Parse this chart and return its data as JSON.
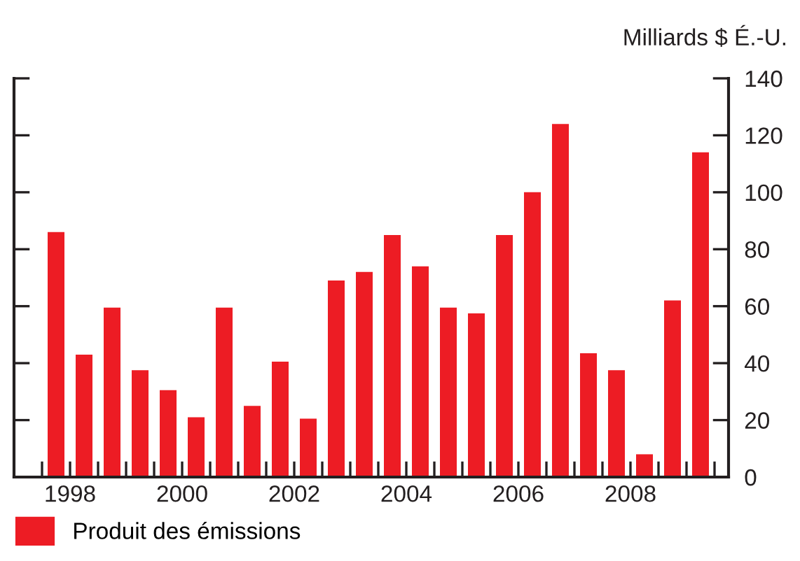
{
  "chart_data": {
    "type": "bar",
    "ylabel": "Milliards $ É.-U.",
    "x": [
      1998.25,
      1998.75,
      1999.25,
      1999.75,
      2000.25,
      2000.75,
      2001.25,
      2001.75,
      2002.25,
      2002.75,
      2003.25,
      2003.75,
      2004.25,
      2004.75,
      2005.25,
      2005.75,
      2006.25,
      2006.75,
      2007.25,
      2007.75,
      2008.25,
      2008.75,
      2009.25,
      2009.75
    ],
    "series": [
      {
        "name": "Produit des émissions",
        "color": "#ed1c24",
        "values": [
          86,
          43,
          59.5,
          37.5,
          30.5,
          21,
          59.5,
          25,
          40.5,
          20.5,
          69,
          72,
          85,
          74,
          59.5,
          57.5,
          85,
          100,
          124,
          43.5,
          37.5,
          8,
          62,
          114
        ]
      }
    ],
    "xlim": [
      1997.5,
      2010.25
    ],
    "xticks": [
      {
        "value": 1998,
        "label": null
      },
      {
        "value": 1998.5,
        "label": "1998"
      },
      {
        "value": 1999,
        "label": null
      },
      {
        "value": 1999.5,
        "label": null
      },
      {
        "value": 2000,
        "label": null
      },
      {
        "value": 2000.5,
        "label": "2000"
      },
      {
        "value": 2001,
        "label": null
      },
      {
        "value": 2001.5,
        "label": null
      },
      {
        "value": 2002,
        "label": null
      },
      {
        "value": 2002.5,
        "label": "2002"
      },
      {
        "value": 2003,
        "label": null
      },
      {
        "value": 2003.5,
        "label": null
      },
      {
        "value": 2004,
        "label": null
      },
      {
        "value": 2004.5,
        "label": "2004"
      },
      {
        "value": 2005,
        "label": null
      },
      {
        "value": 2005.5,
        "label": null
      },
      {
        "value": 2006,
        "label": null
      },
      {
        "value": 2006.5,
        "label": "2006"
      },
      {
        "value": 2007,
        "label": null
      },
      {
        "value": 2007.5,
        "label": null
      },
      {
        "value": 2008,
        "label": null
      },
      {
        "value": 2008.5,
        "label": "2008"
      },
      {
        "value": 2009,
        "label": null
      },
      {
        "value": 2009.5,
        "label": null
      },
      {
        "value": 2010,
        "label": null
      }
    ],
    "ylim": [
      0,
      140
    ],
    "yticks": [
      0,
      20,
      40,
      60,
      80,
      100,
      120,
      140
    ],
    "grid": false,
    "legend": "bottom left"
  }
}
